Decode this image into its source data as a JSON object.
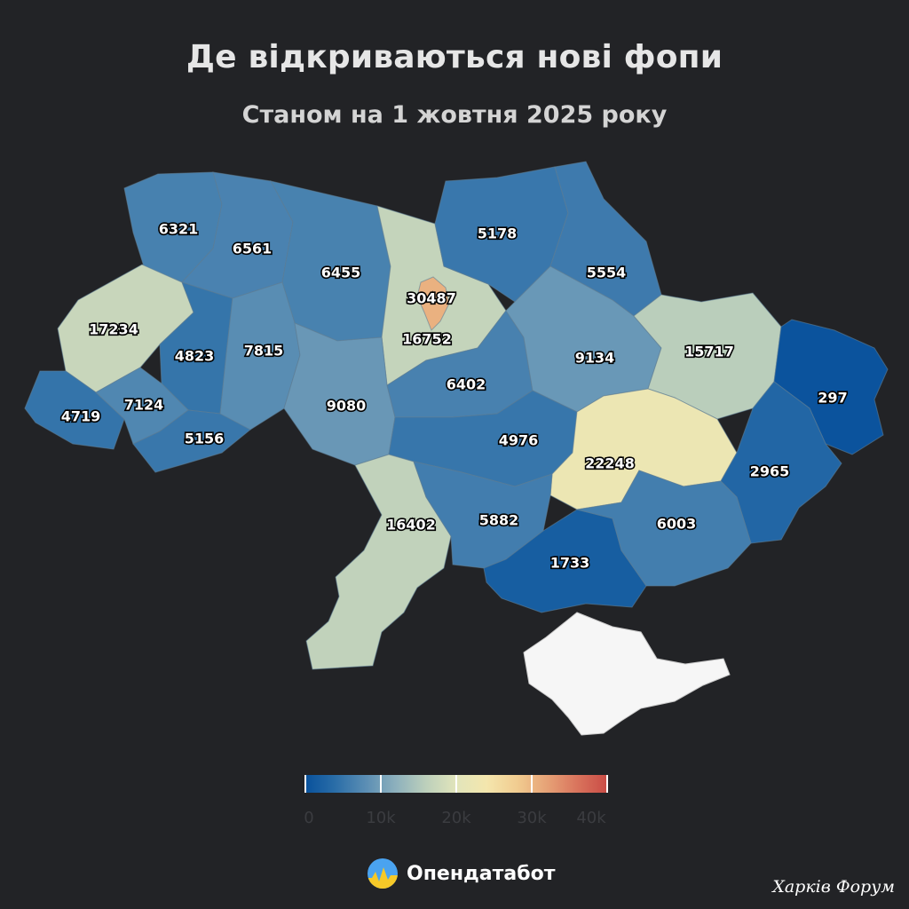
{
  "title": "Де відкриваються нові фопи",
  "subtitle": "Станом на 1 жовтня 2025 року",
  "regions": {
    "volyn": "6321",
    "rivne": "6561",
    "zhytomyr": "6455",
    "kyiv_oblast": "16752",
    "kyiv_city": "30487",
    "chernihiv": "5178",
    "sumy": "5554",
    "lviv": "17234",
    "ternopil": "4823",
    "khmelnytskyi": "7815",
    "zakarpattia": "4719",
    "ivano_frankivsk": "7124",
    "chernivtsi": "5156",
    "vinnytsia": "9080",
    "cherkasy": "6402",
    "poltava": "9134",
    "kharkiv": "15717",
    "luhansk": "297",
    "kirovohrad": "4976",
    "dnipropetrovsk": "22248",
    "donetsk": "2965",
    "odesa": "16402",
    "mykolaiv": "5882",
    "kherson": "1733",
    "zaporizhzhia": "6003"
  },
  "colorbar": {
    "ticks": [
      "0",
      "10k",
      "20k",
      "30k",
      "40k"
    ],
    "min": 0,
    "max": 40000,
    "colors": [
      "#08519c",
      "#2b6ea8",
      "#5b8eb4",
      "#8eb1bd",
      "#bdd0bb",
      "#e2e5bb",
      "#f4e6ad",
      "#f1cc90",
      "#e6a176",
      "#d9735c",
      "#c94b45"
    ]
  },
  "brand": {
    "name": "Опендатабот"
  },
  "watermark": "Харків Форум"
}
